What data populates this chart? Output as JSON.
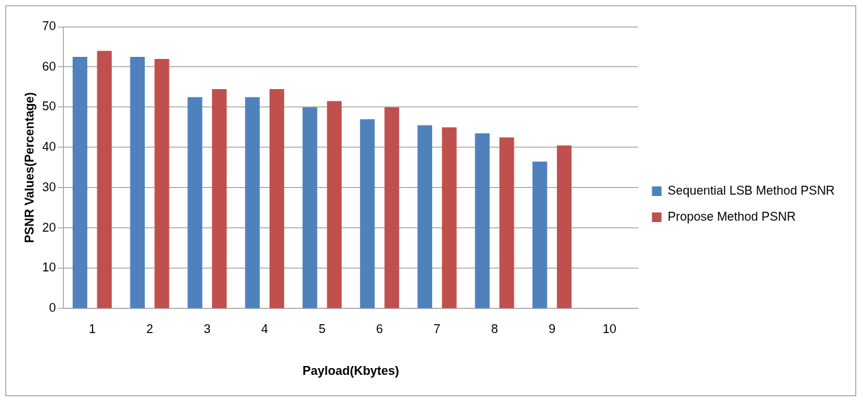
{
  "chart_data": {
    "type": "bar",
    "xlabel": "Payload(Kbytes)",
    "ylabel": "PSNR Values(Percentage)",
    "categories": [
      "1",
      "2",
      "3",
      "4",
      "5",
      "6",
      "7",
      "8",
      "9",
      "10"
    ],
    "series": [
      {
        "name": "Sequential LSB Method PSNR",
        "color": "#4f81bd",
        "values": [
          62.5,
          62.5,
          52.5,
          52.5,
          50,
          47,
          45.5,
          43.5,
          36.5,
          null
        ]
      },
      {
        "name": "Propose Method PSNR",
        "color": "#c0504d",
        "values": [
          64,
          62,
          54.5,
          54.5,
          51.5,
          50,
          45,
          42.5,
          40.5,
          null
        ]
      }
    ],
    "ylim": [
      0,
      70
    ],
    "yticks": [
      0,
      10,
      20,
      30,
      40,
      50,
      60,
      70
    ],
    "grid": "y",
    "legend": "right"
  }
}
